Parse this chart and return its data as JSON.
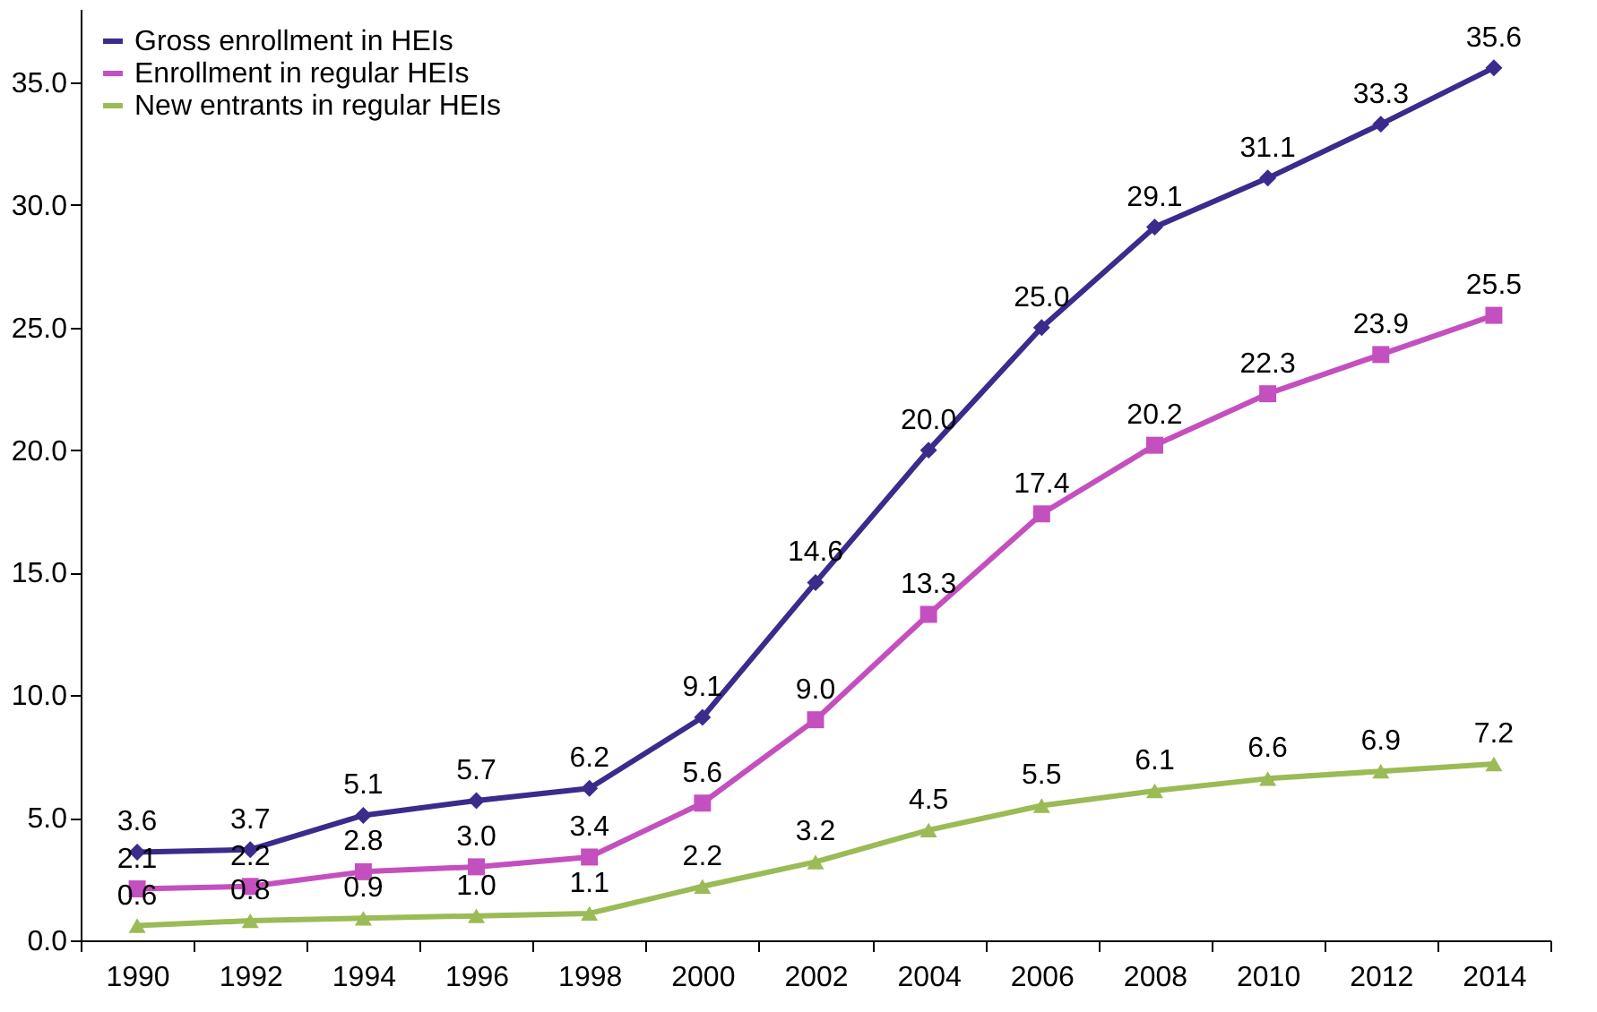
{
  "chart_data": {
    "type": "line",
    "categories": [
      "1990",
      "1992",
      "1994",
      "1996",
      "1998",
      "2000",
      "2002",
      "2004",
      "2006",
      "2008",
      "2010",
      "2012",
      "2014"
    ],
    "series": [
      {
        "name": "Gross enrollment in HEIs",
        "color": "#3c2a8c",
        "marker": "diamond",
        "values": [
          3.6,
          3.7,
          5.1,
          5.7,
          6.2,
          9.1,
          14.6,
          20.0,
          25.0,
          29.1,
          31.1,
          33.3,
          35.6
        ],
        "value_labels": [
          "3.6",
          "3.7",
          "5.1",
          "5.7",
          "6.2",
          "9.1",
          "14.6",
          "20.0",
          "25.0",
          "29.1",
          "31.1",
          "33.3",
          "35.6"
        ]
      },
      {
        "name": "Enrollment in regular HEIs",
        "color": "#c44fbf",
        "marker": "square",
        "values": [
          2.1,
          2.2,
          2.8,
          3.0,
          3.4,
          5.6,
          9.0,
          13.3,
          17.4,
          20.2,
          22.3,
          23.9,
          25.5
        ],
        "value_labels": [
          "2.1",
          "2.2",
          "2.8",
          "3.0",
          "3.4",
          "5.6",
          "9.0",
          "13.3",
          "17.4",
          "20.2",
          "22.3",
          "23.9",
          "25.5"
        ]
      },
      {
        "name": "New entrants in regular HEIs",
        "color": "#9abb55",
        "marker": "triangle",
        "values": [
          0.6,
          0.8,
          0.9,
          1.0,
          1.1,
          2.2,
          3.2,
          4.5,
          5.5,
          6.1,
          6.6,
          6.9,
          7.2
        ],
        "value_labels": [
          "0.6",
          "0.8",
          "0.9",
          "1.0",
          "1.1",
          "2.2",
          "3.2",
          "4.5",
          "5.5",
          "6.1",
          "6.6",
          "6.9",
          "7.2"
        ]
      }
    ],
    "ylim": [
      0,
      38
    ],
    "yticks": [
      {
        "value": 0,
        "label": "0.0"
      },
      {
        "value": 5,
        "label": "5.0"
      },
      {
        "value": 10,
        "label": "10.0"
      },
      {
        "value": 15,
        "label": "15.0"
      },
      {
        "value": 20,
        "label": "20.0"
      },
      {
        "value": 25,
        "label": "25.0"
      },
      {
        "value": 30,
        "label": "30.0"
      },
      {
        "value": 35,
        "label": "35.0"
      }
    ],
    "legend": "top left",
    "grid": false
  }
}
